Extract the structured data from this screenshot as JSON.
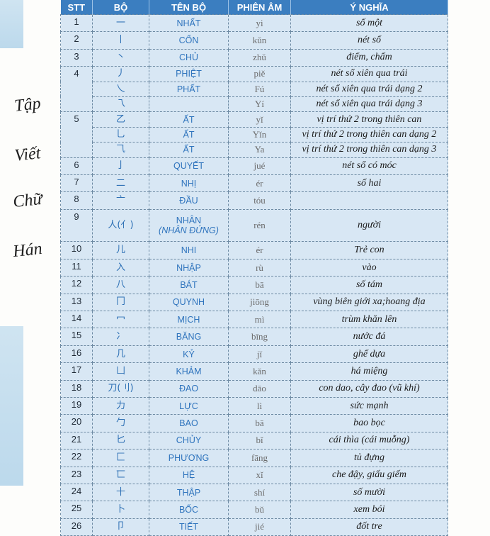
{
  "side_title": [
    "Tập",
    "Viết",
    "Chữ",
    "Hán"
  ],
  "table": {
    "headers": [
      "STT",
      "BỘ",
      "TÊN BỘ",
      "PHIÊN ÂM",
      "Ý NGHĨA"
    ],
    "rows": [
      {
        "stt": "1",
        "bo": "一",
        "ten": "NHẤT",
        "am": "yi",
        "nghia": "số một"
      },
      {
        "stt": "2",
        "bo": "丨",
        "ten": "CỔN",
        "am": "kǔn",
        "nghia": "nét sổ"
      },
      {
        "stt": "3",
        "bo": "丶",
        "ten": "CHỦ",
        "am": "zhǔ",
        "nghia": "điểm, chấm"
      },
      {
        "stt": "4",
        "span": 3,
        "bo": "丿",
        "ten": "PHIỆT",
        "am": "piě",
        "nghia": "nét sổ xiên qua trái"
      },
      {
        "bo": "乀",
        "ten": "PHẤT",
        "am": "Fú",
        "nghia": "nét sổ xiên qua trái dạng 2"
      },
      {
        "bo": "乁",
        "am": "Yí",
        "nghia": "nét sổ xiên qua trái dạng 3"
      },
      {
        "stt": "5",
        "span": 3,
        "bo": "乙",
        "ten": "ẤT",
        "am": "yǐ",
        "nghia": "vị trí thứ 2 trong thiên can"
      },
      {
        "bo": "乚",
        "ten": "ẤT",
        "am": "Yǐn",
        "nghia": "vị trí thứ 2 trong thiên can dạng 2"
      },
      {
        "bo": "⺄",
        "ten": "ẤT",
        "am": "Ya",
        "nghia": "vị trí thứ 2 trong thiên can dạng 3"
      },
      {
        "stt": "6",
        "bo": "亅",
        "ten": "QUYẾT",
        "am": "jué",
        "nghia": "nét sổ có móc"
      },
      {
        "stt": "7",
        "bo": "二",
        "ten": "NHỊ",
        "am": "ér",
        "nghia": "số hai"
      },
      {
        "stt": "8",
        "bo": "亠",
        "ten": "ĐẦU",
        "am": "tóu"
      },
      {
        "stt": "9",
        "tall": true,
        "bo": "人(亻)",
        "ten": "NHÂN",
        "ten_note": "(NHÂN ĐỨNG)",
        "am": "rén",
        "nghia": "người"
      },
      {
        "stt": "10",
        "bo": "儿",
        "ten": "NHI",
        "am": "ér",
        "nghia": "Trẻ con"
      },
      {
        "stt": "11",
        "bo": "入",
        "ten": "NHẬP",
        "am": "rù",
        "nghia": "vào"
      },
      {
        "stt": "12",
        "bo": "八",
        "ten": "BÁT",
        "am": "bā",
        "nghia": "số tám"
      },
      {
        "stt": "13",
        "bo": "冂",
        "ten": "QUYNH",
        "am": "jiōng",
        "nghia": "vùng biên giới xa;hoang địa"
      },
      {
        "stt": "14",
        "bo": "冖",
        "ten": "MỊCH",
        "am": "mì",
        "nghia": "trùm khăn lên"
      },
      {
        "stt": "15",
        "bo": "冫",
        "ten": "BĂNG",
        "am": "bīng",
        "nghia": "nước đá"
      },
      {
        "stt": "16",
        "bo": "几",
        "ten": "KỶ",
        "am": "jǐ",
        "nghia": "ghế dựa"
      },
      {
        "stt": "17",
        "bo": "凵",
        "ten": "KHẢM",
        "am": "kǎn",
        "nghia": "há miệng"
      },
      {
        "stt": "18",
        "bo": "刀(刂)",
        "ten": "ĐAO",
        "am": "dāo",
        "nghia": "con dao, cây đao (vũ khí)"
      },
      {
        "stt": "19",
        "bo": "力",
        "ten": "LỰC",
        "am": "lì",
        "nghia": "sức mạnh"
      },
      {
        "stt": "20",
        "bo": "勹",
        "ten": "BAO",
        "am": "bā",
        "nghia": "bao bọc"
      },
      {
        "stt": "21",
        "bo": "匕",
        "ten": "CHỦY",
        "am": "bǐ",
        "nghia": "cái thìa (cái muỗng)"
      },
      {
        "stt": "22",
        "bo": "匚",
        "ten": "PHƯƠNG",
        "am": "fāng",
        "nghia": "tủ đựng"
      },
      {
        "stt": "23",
        "bo": "匸",
        "ten": "HỆ",
        "am": "xǐ",
        "nghia": "che đậy, giấu giếm"
      },
      {
        "stt": "24",
        "bo": "十",
        "ten": "THẬP",
        "am": "shí",
        "nghia": "số mười"
      },
      {
        "stt": "25",
        "bo": "卜",
        "ten": "BỐC",
        "am": "bǔ",
        "nghia": "xem bói"
      },
      {
        "stt": "26",
        "bo": "卩",
        "ten": "TIẾT",
        "am": "jié",
        "nghia": "đốt tre"
      }
    ]
  }
}
